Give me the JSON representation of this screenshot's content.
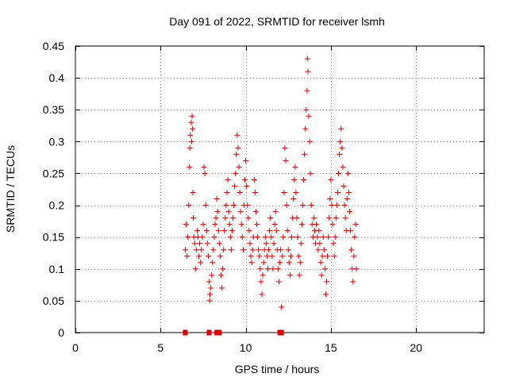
{
  "chart_data": {
    "type": "scatter",
    "title": "Day 091 of 2022, SRMTID for receiver lsmh",
    "xlabel": "GPS time / hours",
    "ylabel": "SRMTID / TECUs",
    "xlim": [
      0,
      24
    ],
    "ylim": [
      0,
      0.45
    ],
    "xticks": [
      0,
      5,
      10,
      15,
      20
    ],
    "yticks": [
      0,
      0.05,
      0.1,
      0.15,
      0.2,
      0.25,
      0.3,
      0.35,
      0.4,
      0.45
    ],
    "xtick_labels": [
      "0",
      "5",
      "10",
      "15",
      "20"
    ],
    "ytick_labels": [
      "0",
      "0.05",
      "0.1",
      "0.15",
      "0.2",
      "0.25",
      "0.3",
      "0.35",
      "0.4",
      "0.45"
    ],
    "grid": true,
    "marker": "+",
    "color": "#e00000",
    "series": [
      {
        "name": "SRMTID",
        "points": [
          [
            6.45,
            0.13
          ],
          [
            6.5,
            0.17
          ],
          [
            6.55,
            0.12
          ],
          [
            6.6,
            0.15
          ],
          [
            6.65,
            0.2
          ],
          [
            6.7,
            0.26
          ],
          [
            6.72,
            0.29
          ],
          [
            6.75,
            0.31
          ],
          [
            6.8,
            0.33
          ],
          [
            6.82,
            0.3
          ],
          [
            6.85,
            0.34
          ],
          [
            6.88,
            0.32
          ],
          [
            6.9,
            0.22
          ],
          [
            6.92,
            0.18
          ],
          [
            6.95,
            0.15
          ],
          [
            7.0,
            0.14
          ],
          [
            7.05,
            0.1
          ],
          [
            7.1,
            0.13
          ],
          [
            7.15,
            0.16
          ],
          [
            7.2,
            0.15
          ],
          [
            7.25,
            0.12
          ],
          [
            7.3,
            0.14
          ],
          [
            7.35,
            0.11
          ],
          [
            7.4,
            0.13
          ],
          [
            7.45,
            0.15
          ],
          [
            7.5,
            0.17
          ],
          [
            7.55,
            0.26
          ],
          [
            7.6,
            0.25
          ],
          [
            7.65,
            0.2
          ],
          [
            7.7,
            0.16
          ],
          [
            7.75,
            0.14
          ],
          [
            7.8,
            0.12
          ],
          [
            7.85,
            0.08
          ],
          [
            7.88,
            0.05
          ],
          [
            7.9,
            0.06
          ],
          [
            7.95,
            0.07
          ],
          [
            8.0,
            0.09
          ],
          [
            8.05,
            0.11
          ],
          [
            8.1,
            0.13
          ],
          [
            8.15,
            0.15
          ],
          [
            8.2,
            0.17
          ],
          [
            8.25,
            0.18
          ],
          [
            8.3,
            0.21
          ],
          [
            8.35,
            0.19
          ],
          [
            8.4,
            0.16
          ],
          [
            8.45,
            0.14
          ],
          [
            8.5,
            0.12
          ],
          [
            8.55,
            0.09
          ],
          [
            8.6,
            0.07
          ],
          [
            8.65,
            0.1
          ],
          [
            8.7,
            0.13
          ],
          [
            8.75,
            0.16
          ],
          [
            8.8,
            0.18
          ],
          [
            8.85,
            0.2
          ],
          [
            8.9,
            0.22
          ],
          [
            8.95,
            0.24
          ],
          [
            9.0,
            0.19
          ],
          [
            9.05,
            0.17
          ],
          [
            9.1,
            0.15
          ],
          [
            9.15,
            0.13
          ],
          [
            9.2,
            0.16
          ],
          [
            9.25,
            0.18
          ],
          [
            9.3,
            0.2
          ],
          [
            9.35,
            0.23
          ],
          [
            9.4,
            0.25
          ],
          [
            9.45,
            0.28
          ],
          [
            9.5,
            0.31
          ],
          [
            9.55,
            0.29
          ],
          [
            9.6,
            0.26
          ],
          [
            9.65,
            0.22
          ],
          [
            9.7,
            0.19
          ],
          [
            9.75,
            0.17
          ],
          [
            9.8,
            0.15
          ],
          [
            9.85,
            0.13
          ],
          [
            9.9,
            0.2
          ],
          [
            9.95,
            0.24
          ],
          [
            10.0,
            0.27
          ],
          [
            10.05,
            0.23
          ],
          [
            10.1,
            0.2
          ],
          [
            10.15,
            0.18
          ],
          [
            10.2,
            0.16
          ],
          [
            10.25,
            0.14
          ],
          [
            10.3,
            0.12
          ],
          [
            10.35,
            0.11
          ],
          [
            10.4,
            0.13
          ],
          [
            10.45,
            0.15
          ],
          [
            10.5,
            0.24
          ],
          [
            10.55,
            0.22
          ],
          [
            10.6,
            0.19
          ],
          [
            10.65,
            0.17
          ],
          [
            10.7,
            0.15
          ],
          [
            10.75,
            0.13
          ],
          [
            10.8,
            0.12
          ],
          [
            10.85,
            0.1
          ],
          [
            10.9,
            0.08
          ],
          [
            10.95,
            0.06
          ],
          [
            11.0,
            0.09
          ],
          [
            11.05,
            0.11
          ],
          [
            11.1,
            0.13
          ],
          [
            11.15,
            0.15
          ],
          [
            11.2,
            0.14
          ],
          [
            11.25,
            0.12
          ],
          [
            11.3,
            0.1
          ],
          [
            11.35,
            0.13
          ],
          [
            11.4,
            0.16
          ],
          [
            11.45,
            0.18
          ],
          [
            11.5,
            0.15
          ],
          [
            11.55,
            0.12
          ],
          [
            11.6,
            0.1
          ],
          [
            11.65,
            0.14
          ],
          [
            11.7,
            0.17
          ],
          [
            11.75,
            0.19
          ],
          [
            11.8,
            0.16
          ],
          [
            11.85,
            0.13
          ],
          [
            11.9,
            0.1
          ],
          [
            11.95,
            0.08
          ],
          [
            12.0,
            0.11
          ],
          [
            12.05,
            0.13
          ],
          [
            12.1,
            0.04
          ],
          [
            12.15,
            0.12
          ],
          [
            12.2,
            0.15
          ],
          [
            12.25,
            0.22
          ],
          [
            12.3,
            0.29
          ],
          [
            12.35,
            0.27
          ],
          [
            12.4,
            0.2
          ],
          [
            12.45,
            0.16
          ],
          [
            12.5,
            0.13
          ],
          [
            12.55,
            0.11
          ],
          [
            12.6,
            0.09
          ],
          [
            12.65,
            0.12
          ],
          [
            12.7,
            0.15
          ],
          [
            12.75,
            0.18
          ],
          [
            12.8,
            0.21
          ],
          [
            12.85,
            0.24
          ],
          [
            12.9,
            0.26
          ],
          [
            12.95,
            0.22
          ],
          [
            13.0,
            0.18
          ],
          [
            13.05,
            0.15
          ],
          [
            13.1,
            0.12
          ],
          [
            13.15,
            0.09
          ],
          [
            13.2,
            0.11
          ],
          [
            13.25,
            0.14
          ],
          [
            13.3,
            0.17
          ],
          [
            13.35,
            0.2
          ],
          [
            13.4,
            0.24
          ],
          [
            13.45,
            0.28
          ],
          [
            13.5,
            0.32
          ],
          [
            13.55,
            0.35
          ],
          [
            13.6,
            0.38
          ],
          [
            13.62,
            0.43
          ],
          [
            13.65,
            0.41
          ],
          [
            13.7,
            0.34
          ],
          [
            13.75,
            0.3
          ],
          [
            13.8,
            0.25
          ],
          [
            13.85,
            0.2
          ],
          [
            13.9,
            0.17
          ],
          [
            13.95,
            0.15
          ],
          [
            14.0,
            0.18
          ],
          [
            14.05,
            0.16
          ],
          [
            14.1,
            0.14
          ],
          [
            14.15,
            0.17
          ],
          [
            14.2,
            0.15
          ],
          [
            14.25,
            0.13
          ],
          [
            14.3,
            0.16
          ],
          [
            14.35,
            0.14
          ],
          [
            14.4,
            0.11
          ],
          [
            14.45,
            0.09
          ],
          [
            14.5,
            0.12
          ],
          [
            14.55,
            0.15
          ],
          [
            14.6,
            0.13
          ],
          [
            14.65,
            0.1
          ],
          [
            14.7,
            0.06
          ],
          [
            14.75,
            0.08
          ],
          [
            14.8,
            0.12
          ],
          [
            14.85,
            0.15
          ],
          [
            14.9,
            0.18
          ],
          [
            14.95,
            0.21
          ],
          [
            15.0,
            0.24
          ],
          [
            15.05,
            0.2
          ],
          [
            15.1,
            0.17
          ],
          [
            15.15,
            0.14
          ],
          [
            15.2,
            0.12
          ],
          [
            15.25,
            0.15
          ],
          [
            15.3,
            0.18
          ],
          [
            15.35,
            0.2
          ],
          [
            15.4,
            0.22
          ],
          [
            15.45,
            0.25
          ],
          [
            15.5,
            0.28
          ],
          [
            15.55,
            0.3
          ],
          [
            15.6,
            0.32
          ],
          [
            15.65,
            0.29
          ],
          [
            15.7,
            0.26
          ],
          [
            15.75,
            0.23
          ],
          [
            15.8,
            0.2
          ],
          [
            15.85,
            0.18
          ],
          [
            15.9,
            0.16
          ],
          [
            15.95,
            0.21
          ],
          [
            16.0,
            0.25
          ],
          [
            16.05,
            0.22
          ],
          [
            16.1,
            0.19
          ],
          [
            16.15,
            0.16
          ],
          [
            16.2,
            0.13
          ],
          [
            16.25,
            0.1
          ],
          [
            16.3,
            0.08
          ],
          [
            16.35,
            0.12
          ],
          [
            16.4,
            0.15
          ],
          [
            16.45,
            0.17
          ],
          [
            16.5,
            0.1
          ]
        ],
        "zero_points": [
          6.45,
          7.85,
          8.3,
          8.45,
          12.0,
          12.1
        ]
      }
    ]
  }
}
